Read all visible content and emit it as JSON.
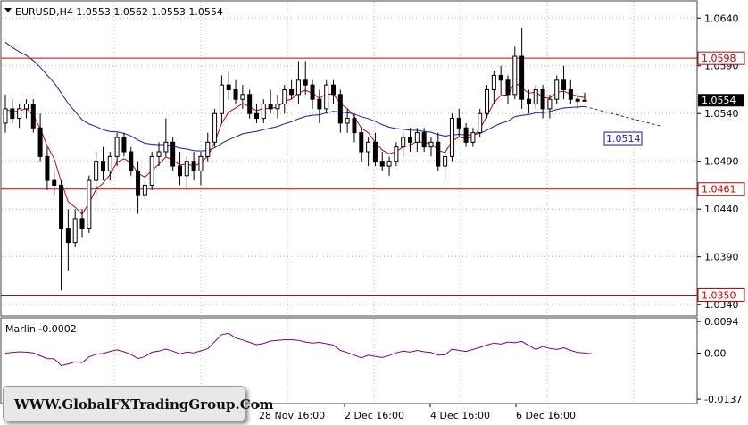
{
  "header": {
    "symbol": "EURUSD,H4",
    "ohlc": "1.0553 1.0562 1.0553 1.0554"
  },
  "indicator": {
    "label": "Marlin -0.0002"
  },
  "watermark": "WWW.GlobalFXTradingGroup.Com",
  "colors": {
    "bull": "#000000",
    "bear": "#000000",
    "ema_fast": "#cc0000",
    "ma_slow": "#1a1a9a",
    "level_line": "#cc0000",
    "oscillator": "#800080",
    "grid": "#b8b8c0"
  },
  "chart_data": {
    "type": "candlestick",
    "price_axis": {
      "ymin": 1.0328,
      "ymax": 1.0658,
      "ticks": [
        "1.0640",
        "1.0590",
        "1.0540",
        "1.0490",
        "1.0440",
        "1.0390",
        "1.0340"
      ]
    },
    "current_price_label": "1.0554",
    "levels": [
      {
        "value": 1.0598,
        "label": "1.0598"
      },
      {
        "value": 1.0461,
        "label": "1.0461"
      },
      {
        "value": 1.035,
        "label": "1.0350"
      }
    ],
    "ma_label": {
      "value": 1.0514,
      "label": "1.0514"
    },
    "time_labels": [
      "28 Nov 16:00",
      "2 Dec 16:00",
      "4 Dec 16:00",
      "6 Dec 16:00"
    ],
    "candles": [
      [
        1.053,
        1.056,
        1.052,
        1.0545
      ],
      [
        1.0545,
        1.0555,
        1.053,
        1.0535
      ],
      [
        1.0535,
        1.055,
        1.0525,
        1.0545
      ],
      [
        1.0545,
        1.0555,
        1.0535,
        1.055
      ],
      [
        1.055,
        1.0555,
        1.052,
        1.0525
      ],
      [
        1.0525,
        1.054,
        1.049,
        1.0495
      ],
      [
        1.0495,
        1.0505,
        1.046,
        1.047
      ],
      [
        1.047,
        1.048,
        1.0455,
        1.0465
      ],
      [
        1.0465,
        1.047,
        1.0355,
        1.042
      ],
      [
        1.042,
        1.044,
        1.0375,
        1.0405
      ],
      [
        1.0405,
        1.044,
        1.04,
        1.043
      ],
      [
        1.043,
        1.044,
        1.041,
        1.042
      ],
      [
        1.042,
        1.0475,
        1.0415,
        1.047
      ],
      [
        1.047,
        1.05,
        1.0455,
        1.049
      ],
      [
        1.049,
        1.0505,
        1.047,
        1.048
      ],
      [
        1.048,
        1.05,
        1.047,
        1.0495
      ],
      [
        1.0495,
        1.052,
        1.0485,
        1.0515
      ],
      [
        1.0515,
        1.052,
        1.0495,
        1.05
      ],
      [
        1.05,
        1.0505,
        1.0475,
        1.048
      ],
      [
        1.048,
        1.049,
        1.0435,
        1.0455
      ],
      [
        1.0455,
        1.047,
        1.045,
        1.0465
      ],
      [
        1.0465,
        1.05,
        1.046,
        1.0495
      ],
      [
        1.0495,
        1.051,
        1.0485,
        1.05
      ],
      [
        1.05,
        1.0535,
        1.0495,
        1.051
      ],
      [
        1.051,
        1.0515,
        1.048,
        1.0485
      ],
      [
        1.0485,
        1.05,
        1.0465,
        1.0475
      ],
      [
        1.0475,
        1.0495,
        1.046,
        1.049
      ],
      [
        1.049,
        1.05,
        1.047,
        1.048
      ],
      [
        1.048,
        1.05,
        1.0465,
        1.0495
      ],
      [
        1.0495,
        1.052,
        1.049,
        1.051
      ],
      [
        1.051,
        1.0545,
        1.0505,
        1.054
      ],
      [
        1.054,
        1.058,
        1.053,
        1.057
      ],
      [
        1.057,
        1.0585,
        1.0555,
        1.0565
      ],
      [
        1.0565,
        1.0575,
        1.055,
        1.0555
      ],
      [
        1.0555,
        1.057,
        1.0545,
        1.056
      ],
      [
        1.056,
        1.0565,
        1.0535,
        1.054
      ],
      [
        1.054,
        1.055,
        1.053,
        1.0535
      ],
      [
        1.0535,
        1.0555,
        1.053,
        1.055
      ],
      [
        1.055,
        1.0565,
        1.054,
        1.0545
      ],
      [
        1.0545,
        1.056,
        1.0535,
        1.055
      ],
      [
        1.055,
        1.057,
        1.054,
        1.0565
      ],
      [
        1.0565,
        1.0575,
        1.0555,
        1.056
      ],
      [
        1.056,
        1.0595,
        1.055,
        1.0575
      ],
      [
        1.0575,
        1.0595,
        1.056,
        1.057
      ],
      [
        1.057,
        1.0575,
        1.0545,
        1.0555
      ],
      [
        1.0555,
        1.0565,
        1.053,
        1.0545
      ],
      [
        1.0545,
        1.0575,
        1.054,
        1.057
      ],
      [
        1.057,
        1.0575,
        1.055,
        1.056
      ],
      [
        1.056,
        1.0565,
        1.052,
        1.053
      ],
      [
        1.053,
        1.0545,
        1.052,
        1.0535
      ],
      [
        1.0535,
        1.054,
        1.051,
        1.052
      ],
      [
        1.052,
        1.0525,
        1.049,
        1.05
      ],
      [
        1.05,
        1.0515,
        1.0485,
        1.051
      ],
      [
        1.051,
        1.052,
        1.0485,
        1.049
      ],
      [
        1.049,
        1.05,
        1.048,
        1.0485
      ],
      [
        1.0485,
        1.0495,
        1.0475,
        1.049
      ],
      [
        1.049,
        1.051,
        1.0485,
        1.0505
      ],
      [
        1.0505,
        1.052,
        1.0495,
        1.0515
      ],
      [
        1.0515,
        1.0525,
        1.05,
        1.051
      ],
      [
        1.051,
        1.0525,
        1.05,
        1.052
      ],
      [
        1.052,
        1.0525,
        1.05,
        1.0505
      ],
      [
        1.0505,
        1.0515,
        1.0495,
        1.051
      ],
      [
        1.051,
        1.052,
        1.048,
        1.0485
      ],
      [
        1.0485,
        1.05,
        1.047,
        1.0495
      ],
      [
        1.0495,
        1.054,
        1.049,
        1.0535
      ],
      [
        1.0535,
        1.0545,
        1.0515,
        1.0525
      ],
      [
        1.0525,
        1.053,
        1.0505,
        1.051
      ],
      [
        1.051,
        1.0525,
        1.0505,
        1.052
      ],
      [
        1.052,
        1.0545,
        1.0515,
        1.054
      ],
      [
        1.054,
        1.057,
        1.0535,
        1.0565
      ],
      [
        1.0565,
        1.0585,
        1.055,
        1.058
      ],
      [
        1.058,
        1.059,
        1.056,
        1.0575
      ],
      [
        1.0575,
        1.058,
        1.055,
        1.056
      ],
      [
        1.056,
        1.061,
        1.0555,
        1.06
      ],
      [
        1.06,
        1.063,
        1.0545,
        1.0555
      ],
      [
        1.0555,
        1.0565,
        1.054,
        1.055
      ],
      [
        1.055,
        1.057,
        1.0545,
        1.0565
      ],
      [
        1.0565,
        1.057,
        1.0535,
        1.0545
      ],
      [
        1.0545,
        1.056,
        1.0535,
        1.0555
      ],
      [
        1.0555,
        1.058,
        1.055,
        1.0575
      ],
      [
        1.0575,
        1.059,
        1.0555,
        1.0565
      ],
      [
        1.0565,
        1.0575,
        1.055,
        1.0555
      ],
      [
        1.0555,
        1.056,
        1.0545,
        1.0553
      ],
      [
        1.0553,
        1.0562,
        1.0553,
        1.0554
      ]
    ],
    "osc_axis": {
      "ymin": -0.015,
      "ymax": 0.0105,
      "ticks": [
        "0.0094",
        "0.00",
        "-0.0137"
      ]
    },
    "oscillator": [
      0.0,
      0.0002,
      0.0004,
      0.0003,
      0.0001,
      -0.0008,
      -0.0016,
      -0.0017,
      -0.0037,
      -0.0032,
      -0.0026,
      -0.0028,
      -0.0011,
      -0.0003,
      -0.0001,
      0.0005,
      0.001,
      0.0004,
      -0.0004,
      -0.0016,
      -0.001,
      0.0003,
      0.0006,
      0.0012,
      0.0006,
      -0.0002,
      0.0003,
      0.0001,
      0.0007,
      0.0013,
      0.0034,
      0.0055,
      0.0059,
      0.0045,
      0.0039,
      0.0032,
      0.0025,
      0.0029,
      0.0036,
      0.0038,
      0.004,
      0.004,
      0.0038,
      0.0033,
      0.003,
      0.0032,
      0.0028,
      0.0024,
      0.0008,
      0.0002,
      -0.0006,
      -0.0014,
      -0.0006,
      -0.001,
      -0.0013,
      -0.0007,
      0.0001,
      0.0006,
      0.0003,
      0.0008,
      0.0004,
      0.0002,
      -0.0006,
      -0.0005,
      0.0012,
      0.0008,
      0.0005,
      0.0011,
      0.0017,
      0.0024,
      0.003,
      0.0027,
      0.0033,
      0.0031,
      0.0035,
      0.0023,
      0.0011,
      0.002,
      0.0014,
      0.0011,
      0.0016,
      0.0008,
      0.0002,
      0.0001,
      -0.0002
    ]
  }
}
